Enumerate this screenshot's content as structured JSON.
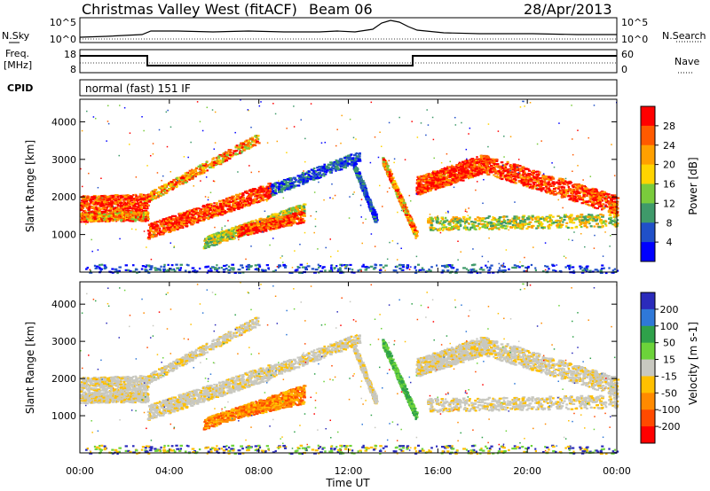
{
  "header": {
    "station": "Christmas Valley West (fitACF)",
    "beam": "Beam 06",
    "date": "28/Apr/2013"
  },
  "left_labels": {
    "nsky": "N.Sky",
    "freq_line1": "Freq.",
    "freq_line2": "[MHz]",
    "cpid": "CPID"
  },
  "right_labels": {
    "nsearch": "N.Search",
    "nave": "Nave"
  },
  "cpid_value": "normal (fast) 151 IF",
  "noise_panel": {
    "left_ticks": [
      "10^5",
      "10^0"
    ],
    "right_ticks": [
      "10^5",
      "10^0"
    ]
  },
  "freq_panel": {
    "left_ticks": [
      "18",
      "8"
    ],
    "right_ticks": [
      "60",
      "0"
    ]
  },
  "chart_data": [
    {
      "type": "heatmap",
      "title": "Power",
      "ylabel": "Slant Range [km]",
      "xlabel": "",
      "y_ticks": [
        "4000",
        "3000",
        "2000",
        "1000"
      ],
      "ylim": [
        0,
        4600
      ],
      "colorbar": {
        "label": "Power [dB]",
        "ticks": [
          "28",
          "24",
          "20",
          "16",
          "12",
          "8",
          "4"
        ],
        "colors": [
          "#ff0000",
          "#ff5a00",
          "#ffa000",
          "#ffd400",
          "#7acb3c",
          "#3f9a6a",
          "#2050c8",
          "#0000ff"
        ]
      }
    },
    {
      "type": "heatmap",
      "title": "Velocity",
      "ylabel": "Slant Range [km]",
      "xlabel": "Time UT",
      "x_ticks": [
        "00:00",
        "04:00",
        "08:00",
        "12:00",
        "16:00",
        "20:00",
        "00:00"
      ],
      "y_ticks": [
        "4000",
        "3000",
        "2000",
        "1000"
      ],
      "ylim": [
        0,
        4600
      ],
      "colorbar": {
        "label": "Velocity [m s-1]",
        "ticks": [
          "200",
          "100",
          "50",
          "15",
          "-15",
          "-50",
          "-100",
          "-200"
        ],
        "colors": [
          "#2b2bbb",
          "#2f78d8",
          "#2fa14a",
          "#6cd33a",
          "#c8c8c0",
          "#ffc000",
          "#ff8a00",
          "#ff4a00",
          "#ff0000"
        ]
      }
    }
  ]
}
